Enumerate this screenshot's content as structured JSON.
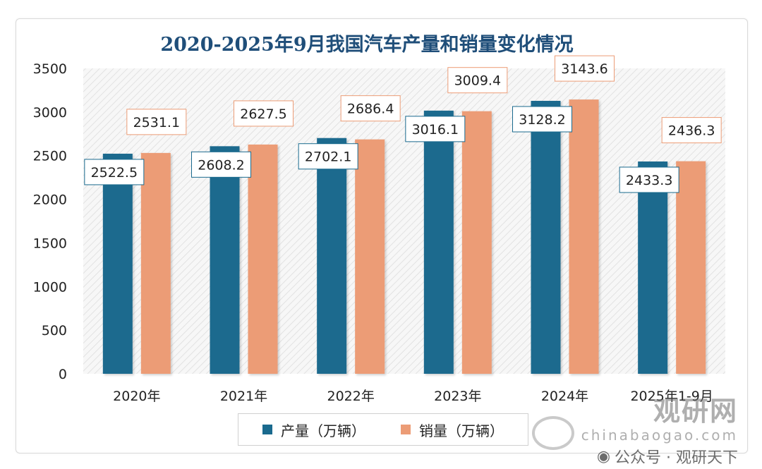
{
  "chart_data": {
    "type": "bar",
    "title": "2020-2025年9月我国汽车产量和销量变化情况",
    "categories": [
      "2020年",
      "2021年",
      "2022年",
      "2023年",
      "2024年",
      "2025年1-9月"
    ],
    "series": [
      {
        "name": "产量（万辆）",
        "color": "#1a6a8e",
        "values": [
          2522.5,
          2608.2,
          2702.1,
          3016.1,
          3128.2,
          2433.3
        ]
      },
      {
        "name": "销量（万辆）",
        "color": "#ec9c76",
        "values": [
          2531.1,
          2627.5,
          2686.4,
          3009.4,
          3143.6,
          2436.3
        ]
      }
    ],
    "ylim": [
      0,
      3500
    ],
    "yticks": [
      0,
      500,
      1000,
      1500,
      2000,
      2500,
      3000,
      3500
    ],
    "xlabel": "",
    "ylabel": "",
    "legend_position": "bottom",
    "grid": false
  },
  "watermark": {
    "brand": "观研网",
    "url": "chinabaogao.com",
    "wechat": "公众号 · 观研天下"
  }
}
